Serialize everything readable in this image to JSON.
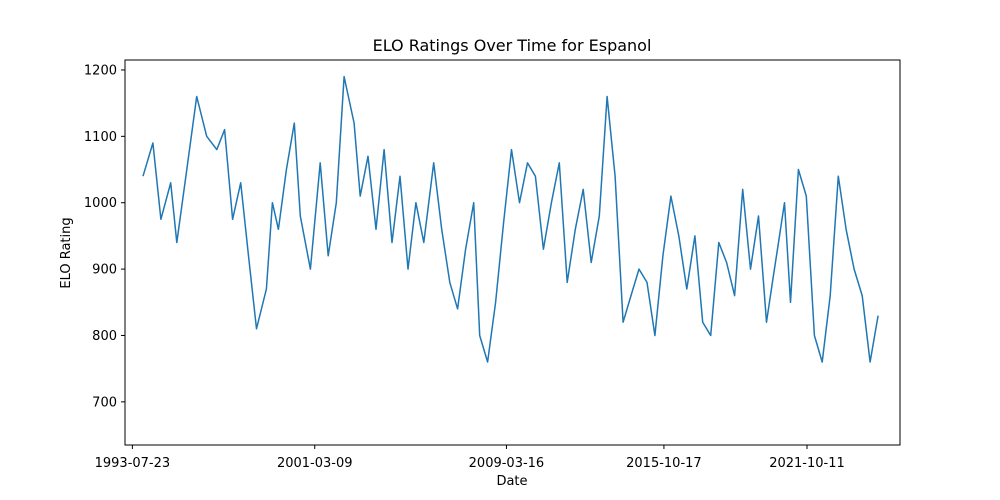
{
  "chart_data": {
    "type": "line",
    "title": "ELO Ratings Over Time for Espanol",
    "xlabel": "Date",
    "ylabel": "ELO Rating",
    "grid": false,
    "legend": "none",
    "xlim": [
      "1993-04-01",
      "2025-09-01"
    ],
    "ylim": [
      635,
      1215
    ],
    "x_ticks": [
      "1993-07-23",
      "2001-03-09",
      "2009-03-16",
      "2015-10-17",
      "2021-10-11"
    ],
    "y_ticks": [
      700,
      800,
      900,
      1000,
      1100,
      1200
    ],
    "series": [
      {
        "color": "#1f77b4",
        "x": [
          "1994-01-01",
          "1994-06-01",
          "1994-10-01",
          "1995-03-01",
          "1995-06-01",
          "1995-11-01",
          "1996-04-01",
          "1996-09-01",
          "1997-02-01",
          "1997-06-01",
          "1997-10-01",
          "1998-02-01",
          "1998-06-01",
          "1998-10-01",
          "1999-03-01",
          "1999-06-01",
          "1999-09-01",
          "2000-01-01",
          "2000-05-01",
          "2000-08-01",
          "2001-01-01",
          "2001-06-01",
          "2001-10-01",
          "2002-02-01",
          "2002-06-01",
          "2002-11-01",
          "2003-02-01",
          "2003-06-01",
          "2003-10-01",
          "2004-02-01",
          "2004-06-01",
          "2004-10-01",
          "2005-02-01",
          "2005-06-01",
          "2005-10-01",
          "2006-03-01",
          "2006-07-01",
          "2006-11-01",
          "2007-03-01",
          "2007-07-01",
          "2007-11-01",
          "2008-02-01",
          "2008-06-01",
          "2008-10-01",
          "2009-02-01",
          "2009-06-01",
          "2009-10-01",
          "2010-02-01",
          "2010-06-01",
          "2010-10-01",
          "2011-02-01",
          "2011-06-01",
          "2011-10-01",
          "2012-02-01",
          "2012-06-01",
          "2012-10-01",
          "2013-02-01",
          "2013-06-01",
          "2013-10-01",
          "2014-02-01",
          "2014-06-01",
          "2014-10-01",
          "2015-02-01",
          "2015-06-01",
          "2015-10-01",
          "2016-02-01",
          "2016-06-01",
          "2016-10-01",
          "2017-02-01",
          "2017-06-01",
          "2017-10-01",
          "2018-02-01",
          "2018-06-01",
          "2018-10-01",
          "2019-02-01",
          "2019-06-01",
          "2019-10-01",
          "2020-02-01",
          "2020-05-01",
          "2020-08-01",
          "2020-11-01",
          "2021-02-01",
          "2021-06-01",
          "2021-10-01",
          "2022-02-01",
          "2022-06-01",
          "2022-10-01",
          "2023-02-01",
          "2023-06-01",
          "2023-10-01",
          "2024-02-01",
          "2024-06-01",
          "2024-10-01"
        ],
        "y": [
          1040,
          1090,
          975,
          1030,
          940,
          1050,
          1160,
          1100,
          1080,
          1110,
          975,
          1030,
          920,
          810,
          870,
          1000,
          960,
          1050,
          1120,
          980,
          900,
          1060,
          920,
          1000,
          1190,
          1120,
          1010,
          1070,
          960,
          1080,
          940,
          1040,
          900,
          1000,
          940,
          1060,
          960,
          880,
          840,
          930,
          1000,
          800,
          760,
          850,
          970,
          1080,
          1000,
          1060,
          1040,
          930,
          1000,
          1060,
          880,
          960,
          1020,
          910,
          980,
          1160,
          1040,
          820,
          860,
          900,
          880,
          800,
          920,
          1010,
          950,
          870,
          950,
          820,
          800,
          940,
          910,
          860,
          1020,
          900,
          980,
          820,
          880,
          940,
          1000,
          850,
          1050,
          1010,
          800,
          760,
          860,
          1040,
          960,
          900,
          860,
          760,
          830
        ]
      }
    ]
  }
}
